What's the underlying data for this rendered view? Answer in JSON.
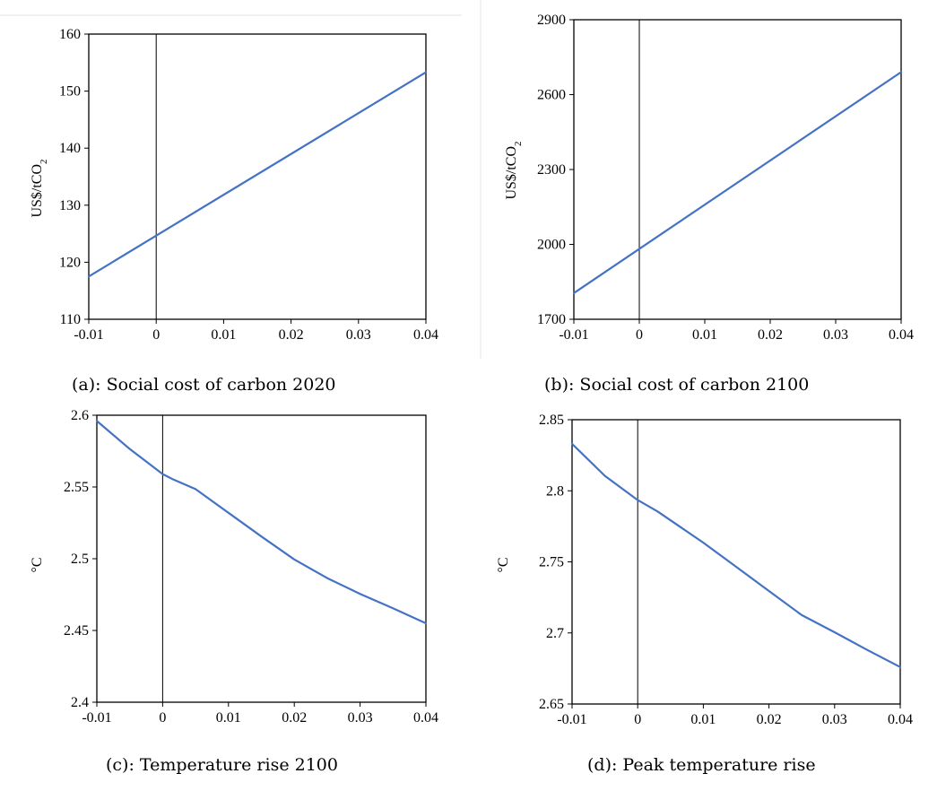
{
  "colors": {
    "series": "#4472C4",
    "axes": "#000000"
  },
  "chart_data": [
    {
      "type": "line",
      "caption": "(a): Social cost of carbon 2020",
      "ylabel": "US$/tCO",
      "ylabel_sub": "2",
      "x_ticks": [
        "-0.01",
        "0",
        "0.01",
        "0.02",
        "0.03",
        "0.04"
      ],
      "y_ticks": [
        "110",
        "120",
        "130",
        "140",
        "150",
        "160"
      ],
      "xlim": [
        -0.01,
        0.04
      ],
      "ylim": [
        110,
        160
      ],
      "series": [
        {
          "x": [
            -0.01,
            0.04
          ],
          "y": [
            117.5,
            153.3
          ]
        }
      ]
    },
    {
      "type": "line",
      "caption": "(b): Social cost of carbon 2100",
      "ylabel": "US$/tCO",
      "ylabel_sub": "2",
      "x_ticks": [
        "-0.01",
        "0",
        "0.01",
        "0.02",
        "0.03",
        "0.04"
      ],
      "y_ticks": [
        "1700",
        "2000",
        "2300",
        "2600",
        "2900"
      ],
      "xlim": [
        -0.01,
        0.04
      ],
      "ylim": [
        1700,
        2900
      ],
      "series": [
        {
          "x": [
            -0.01,
            0.04
          ],
          "y": [
            1805,
            2690
          ]
        }
      ]
    },
    {
      "type": "line",
      "caption": "(c): Temperature rise 2100",
      "ylabel": "°C",
      "ylabel_sub": "",
      "x_ticks": [
        "-0.01",
        "0",
        "0.01",
        "0.02",
        "0.03",
        "0.04"
      ],
      "y_ticks": [
        "2.4",
        "2.45",
        "2.5",
        "2.55",
        "2.6"
      ],
      "xlim": [
        -0.01,
        0.04
      ],
      "ylim": [
        2.4,
        2.6
      ],
      "series": [
        {
          "x": [
            -0.01,
            -0.005,
            0.0,
            0.0015,
            0.005,
            0.01,
            0.015,
            0.02,
            0.025,
            0.03,
            0.035,
            0.04
          ],
          "y": [
            2.596,
            2.5765,
            2.559,
            2.5555,
            2.5485,
            2.532,
            2.5155,
            2.4995,
            2.4865,
            2.4755,
            2.4655,
            2.455
          ]
        }
      ]
    },
    {
      "type": "line",
      "caption": "(d): Peak temperature rise",
      "ylabel": "°C",
      "ylabel_sub": "",
      "x_ticks": [
        "-0.01",
        "0",
        "0.01",
        "0.02",
        "0.03",
        "0.04"
      ],
      "y_ticks": [
        "2.65",
        "2.7",
        "2.75",
        "2.8",
        "2.85"
      ],
      "xlim": [
        -0.01,
        0.04
      ],
      "ylim": [
        2.65,
        2.85
      ],
      "series": [
        {
          "x": [
            -0.01,
            -0.005,
            0.0,
            0.003,
            0.01,
            0.015,
            0.02,
            0.025,
            0.03,
            0.035,
            0.04
          ],
          "y": [
            2.833,
            2.8105,
            2.7935,
            2.7855,
            2.7635,
            2.7465,
            2.7295,
            2.7125,
            2.7005,
            2.688,
            2.676
          ]
        }
      ]
    }
  ]
}
